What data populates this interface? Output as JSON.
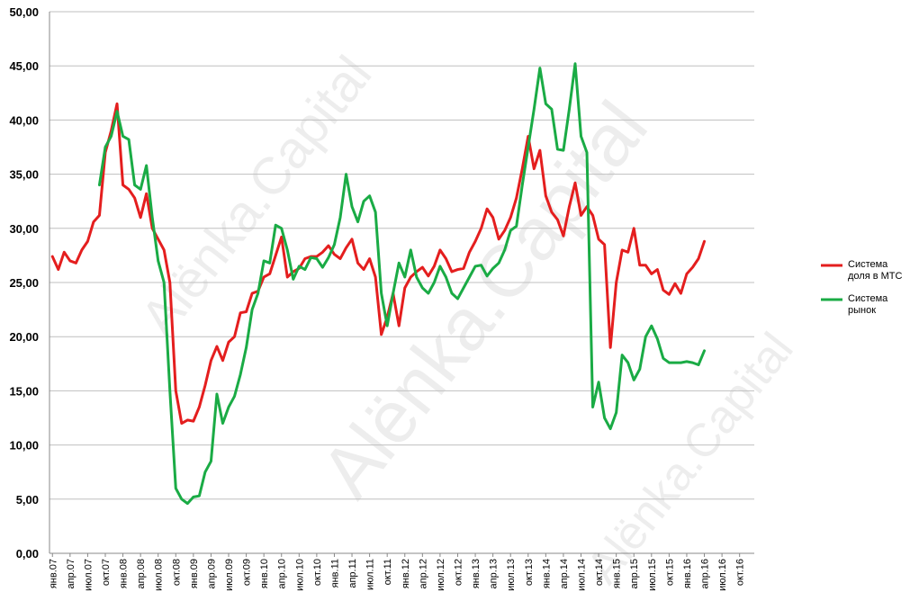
{
  "chart_data": {
    "type": "line",
    "watermark": "Alënka.Capital",
    "categories": [
      "янв.07",
      null,
      null,
      "апр.07",
      null,
      null,
      "июл.07",
      null,
      null,
      "окт.07",
      null,
      null,
      "янв.08",
      null,
      null,
      "апр.08",
      null,
      null,
      "июл.08",
      null,
      null,
      "окт.08",
      null,
      null,
      "янв.09",
      null,
      null,
      "апр.09",
      null,
      null,
      "июл.09",
      null,
      null,
      "окт.09",
      null,
      null,
      "янв.10",
      null,
      null,
      "апр.10",
      null,
      null,
      "июл.10",
      null,
      null,
      "окт.10",
      null,
      null,
      "янв.11",
      null,
      null,
      "апр.11",
      null,
      null,
      "июл.11",
      null,
      null,
      "окт.11",
      null,
      null,
      "янв.12",
      null,
      null,
      "апр.12",
      null,
      null,
      "июл.12",
      null,
      null,
      "окт.12",
      null,
      null,
      "янв.13",
      null,
      null,
      "апр.13",
      null,
      null,
      "июл.13",
      null,
      null,
      "окт.13",
      null,
      null,
      "янв.14",
      null,
      null,
      "апр.14",
      null,
      null,
      "июл.14",
      null,
      null,
      "окт.14",
      null,
      null,
      "янв.15",
      null,
      null,
      "апр.15",
      null,
      null,
      "июл.15",
      null,
      null,
      "окт.15",
      null,
      null,
      "янв.16",
      null,
      null,
      "апр.16",
      null,
      null,
      "июл.16",
      null,
      null,
      "окт.16",
      null,
      null
    ],
    "series": [
      {
        "name": "Система доля в МТС",
        "color": "#e41e1e",
        "values": [
          27.4,
          26.2,
          27.8,
          27.0,
          26.8,
          28.0,
          28.8,
          30.6,
          31.2,
          37.0,
          39.0,
          41.5,
          34.0,
          33.6,
          32.8,
          31.0,
          33.2,
          30.0,
          29.0,
          28.0,
          25.0,
          15.0,
          12.0,
          12.3,
          12.2,
          13.5,
          15.5,
          17.8,
          19.1,
          17.8,
          19.5,
          20.0,
          22.2,
          22.3,
          24.0,
          24.2,
          25.5,
          25.8,
          27.5,
          29.2,
          25.5,
          26.0,
          26.3,
          27.2,
          27.4,
          27.4,
          27.8,
          28.4,
          27.6,
          27.2,
          28.2,
          29.0,
          26.8,
          26.2,
          27.2,
          25.5,
          20.2,
          21.8,
          24.0,
          21.0,
          24.5,
          25.5,
          26.0,
          26.4,
          25.6,
          26.5,
          28.0,
          27.2,
          26.0,
          26.2,
          26.3,
          27.8,
          28.8,
          30.0,
          31.8,
          31.0,
          29.0,
          29.8,
          31.0,
          32.8,
          35.5,
          38.5,
          35.5,
          37.2,
          33.0,
          31.5,
          30.8,
          29.3,
          32.0,
          34.2,
          31.2,
          32.0,
          31.2,
          29.0,
          28.5,
          19.0,
          25.0,
          28.0,
          27.8,
          30.0,
          26.6,
          26.6,
          25.8,
          26.2,
          24.3,
          23.9,
          24.9,
          24.0,
          25.8,
          26.4,
          27.2,
          28.8,
          null,
          null,
          null,
          null,
          null,
          null,
          null,
          null
        ]
      },
      {
        "name": "Система рынок",
        "color": "#1aab45",
        "values": [
          null,
          null,
          null,
          null,
          null,
          null,
          null,
          null,
          34.0,
          37.5,
          38.5,
          40.8,
          38.5,
          38.2,
          34.0,
          33.6,
          35.8,
          31.0,
          27.0,
          25.0,
          15.0,
          6.0,
          5.0,
          4.6,
          5.2,
          5.3,
          7.5,
          8.5,
          14.7,
          12.0,
          13.5,
          14.5,
          16.5,
          19.0,
          22.5,
          24.0,
          27.0,
          26.8,
          30.3,
          30.0,
          28.0,
          25.3,
          26.5,
          26.2,
          27.3,
          27.2,
          26.4,
          27.3,
          28.5,
          31.0,
          35.0,
          32.0,
          30.6,
          32.5,
          33.0,
          31.5,
          24.0,
          21.0,
          24.0,
          26.8,
          25.5,
          28.0,
          25.5,
          24.5,
          24.0,
          25.0,
          26.5,
          25.5,
          24.0,
          23.5,
          24.5,
          25.5,
          26.5,
          26.6,
          25.6,
          26.3,
          26.8,
          28.0,
          29.8,
          30.2,
          34.0,
          37.5,
          41.0,
          44.8,
          41.5,
          41.0,
          37.3,
          37.2,
          41.0,
          45.2,
          38.5,
          37.0,
          13.5,
          15.8,
          12.5,
          11.5,
          13.0,
          18.3,
          17.6,
          16.0,
          17.0,
          20.0,
          21.0,
          19.8,
          18.0,
          17.6,
          17.6,
          17.6,
          17.7,
          17.6,
          17.4,
          18.7,
          null,
          null,
          null,
          null,
          null,
          null,
          null,
          null
        ]
      }
    ],
    "ylim": [
      0,
      50
    ],
    "yticks": [
      {
        "value": 0,
        "label": "0,00"
      },
      {
        "value": 5,
        "label": "5,00"
      },
      {
        "value": 10,
        "label": "10,00"
      },
      {
        "value": 15,
        "label": "15,00"
      },
      {
        "value": 20,
        "label": "20,00"
      },
      {
        "value": 25,
        "label": "25,00"
      },
      {
        "value": 30,
        "label": "30,00"
      },
      {
        "value": 35,
        "label": "35,00"
      },
      {
        "value": 40,
        "label": "40,00"
      },
      {
        "value": 45,
        "label": "45,00"
      },
      {
        "value": 50,
        "label": "50,00"
      }
    ],
    "grid": true,
    "legend": "right"
  }
}
